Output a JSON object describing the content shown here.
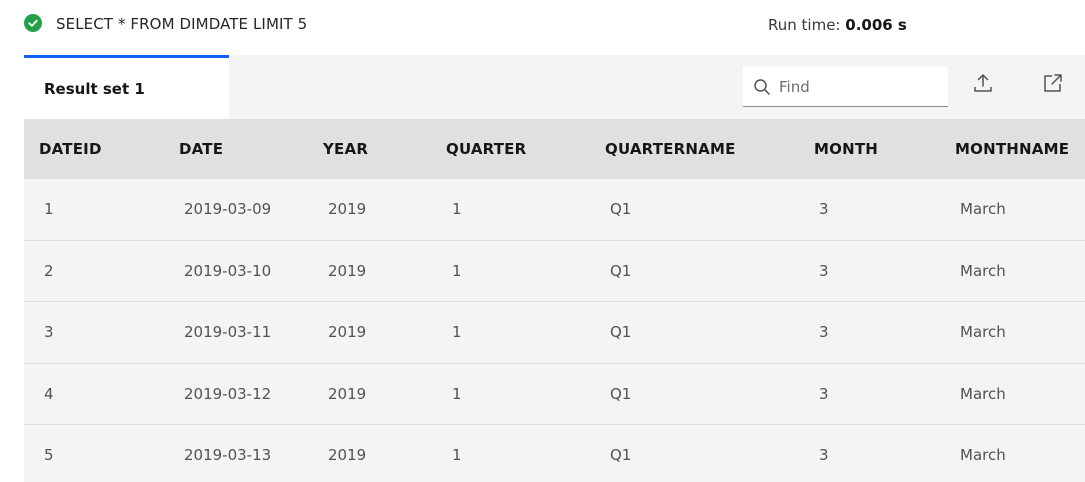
{
  "query": {
    "status_icon": "success-checkmark-icon",
    "status_color": "#24a148",
    "sql": "SELECT * FROM DIMDATE LIMIT 5",
    "runtime_label": "Run time:",
    "runtime_value": "0.006 s"
  },
  "tabs": [
    {
      "label": "Result set",
      "number": "1",
      "active": true
    }
  ],
  "toolbar": {
    "find_placeholder": "Find",
    "find_value": "",
    "export_icon": "upload-icon",
    "popout_icon": "launch-icon"
  },
  "table": {
    "columns": [
      "DATEID",
      "DATE",
      "YEAR",
      "QUARTER",
      "QUARTERNAME",
      "MONTH",
      "MONTHNAME"
    ],
    "rows": [
      [
        "1",
        "2019-03-09",
        "2019",
        "1",
        "Q1",
        "3",
        "March"
      ],
      [
        "2",
        "2019-03-10",
        "2019",
        "1",
        "Q1",
        "3",
        "March"
      ],
      [
        "3",
        "2019-03-11",
        "2019",
        "1",
        "Q1",
        "3",
        "March"
      ],
      [
        "4",
        "2019-03-12",
        "2019",
        "1",
        "Q1",
        "3",
        "March"
      ],
      [
        "5",
        "2019-03-13",
        "2019",
        "1",
        "Q1",
        "3",
        "March"
      ]
    ]
  },
  "colors": {
    "accent": "#0f62fe",
    "panel_bg": "#f4f4f4",
    "header_bg": "#e0e0e0"
  }
}
